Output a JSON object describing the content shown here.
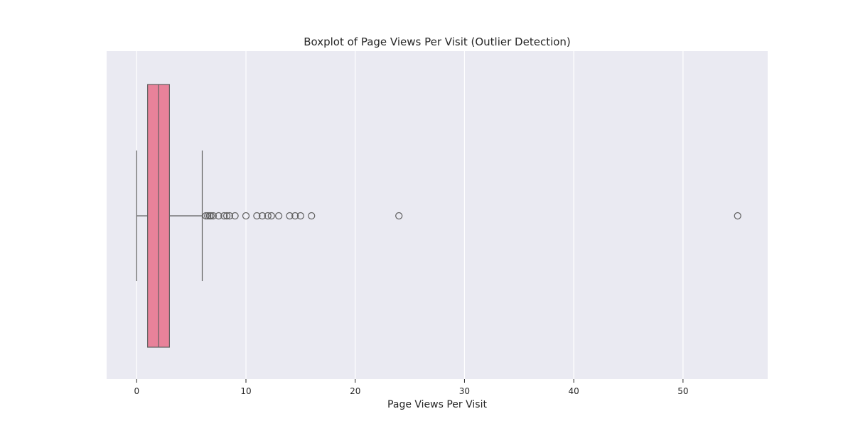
{
  "chart_data": {
    "type": "boxplot",
    "title": "Boxplot of Page Views Per Visit (Outlier Detection)",
    "xlabel": "Page Views Per Visit",
    "ylabel": "",
    "xlim": [
      -2.75,
      57.75
    ],
    "xticks": [
      0,
      10,
      20,
      30,
      40,
      50
    ],
    "grid": true,
    "orientation": "horizontal",
    "box": {
      "min": 0,
      "q1": 1,
      "median": 2,
      "q3": 3,
      "whisker_high": 6,
      "outliers": [
        6.33,
        6.5,
        6.67,
        6.8,
        7,
        7.5,
        8,
        8.25,
        8.5,
        9,
        10,
        11,
        11.5,
        12,
        12.33,
        13,
        14,
        14.5,
        15,
        16,
        24,
        55
      ]
    },
    "colors": {
      "plot_bg": "#eaeaf2",
      "grid": "#ffffff",
      "box_fill": "#e8829a",
      "line": "#5f5f5f"
    }
  }
}
